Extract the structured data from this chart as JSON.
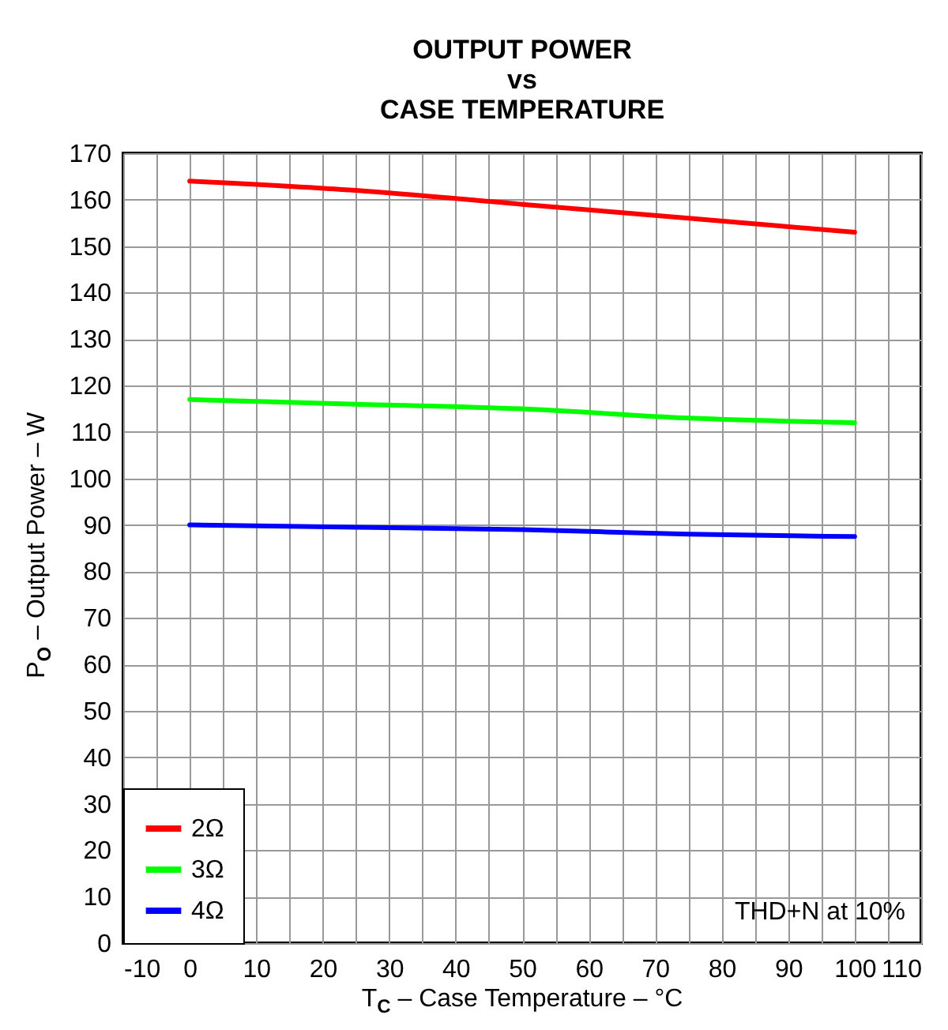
{
  "chart_data": {
    "type": "line",
    "title": "OUTPUT POWER\nvs\nCASE TEMPERATURE",
    "xlabel": "T$_{C}$ – Case Temperature – °C",
    "ylabel": "P$_{O}$ – Output Power – W",
    "x": [
      0,
      25,
      50,
      75,
      100
    ],
    "series": [
      {
        "name": "2Ω",
        "color": "#ff0000",
        "values": [
          164,
          162,
          159,
          156,
          153
        ]
      },
      {
        "name": "3Ω",
        "color": "#00ff00",
        "values": [
          117,
          116,
          115,
          113,
          112
        ]
      },
      {
        "name": "4Ω",
        "color": "#0000ff",
        "values": [
          90,
          89.5,
          89,
          88,
          87.5
        ]
      }
    ],
    "xlim": [
      -10,
      110
    ],
    "xticks": [
      -10,
      {
        "value": -5,
        "label": null
      },
      0,
      {
        "value": 5,
        "label": null
      },
      10,
      {
        "value": 15,
        "label": null
      },
      20,
      {
        "value": 25,
        "label": null
      },
      30,
      {
        "value": 35,
        "label": null
      },
      40,
      {
        "value": 45,
        "label": null
      },
      50,
      {
        "value": 55,
        "label": null
      },
      60,
      {
        "value": 65,
        "label": null
      },
      70,
      {
        "value": 75,
        "label": null
      },
      80,
      {
        "value": 85,
        "label": null
      },
      90,
      {
        "value": 95,
        "label": null
      },
      100,
      {
        "value": 105,
        "label": null
      },
      110
    ],
    "ylim": [
      0,
      170
    ],
    "yticks": [
      0,
      10,
      20,
      30,
      40,
      50,
      60,
      70,
      80,
      90,
      100,
      110,
      120,
      130,
      140,
      150,
      160,
      170
    ],
    "grid": true,
    "legend": "bottom left",
    "line_style": "solid",
    "marker": "none",
    "annotations": [
      "THD+N at 10%"
    ]
  }
}
